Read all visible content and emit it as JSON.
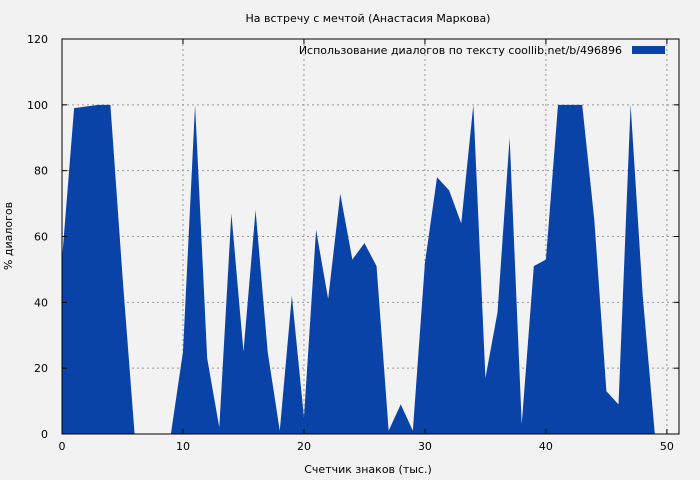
{
  "chart_data": {
    "type": "area",
    "title": "На встречу с мечтой (Анастасия Маркова)",
    "xlabel": "Счетчик знаков (тыс.)",
    "ylabel": "% диалогов",
    "xlim": [
      0,
      51
    ],
    "ylim": [
      0,
      120
    ],
    "x_ticks": [
      0,
      10,
      20,
      30,
      40,
      50
    ],
    "y_ticks": [
      0,
      20,
      40,
      60,
      80,
      100,
      120
    ],
    "grid": true,
    "legend_position": "top-right",
    "colors": {
      "series": "#0a43a8",
      "background": "#f2f2f2",
      "grid": "#999999"
    },
    "series": [
      {
        "name": "Использование диалогов по тексту  coollib.net/b/496896",
        "x": [
          0,
          1,
          2,
          3,
          4,
          5,
          6,
          7,
          8,
          9,
          10,
          11,
          12,
          13,
          14,
          15,
          16,
          17,
          18,
          19,
          20,
          21,
          22,
          23,
          24,
          25,
          26,
          27,
          28,
          29,
          30,
          31,
          32,
          33,
          34,
          35,
          36,
          37,
          38,
          39,
          40,
          41,
          42,
          43,
          44,
          45,
          46,
          47,
          48,
          49,
          50
        ],
        "values": [
          53,
          99,
          99.5,
          100,
          100,
          48,
          0,
          0,
          0,
          0,
          25,
          100,
          23,
          2,
          67,
          25,
          68,
          25,
          1,
          42,
          5,
          62,
          41,
          73,
          53,
          58,
          51,
          1,
          9,
          1,
          52,
          78,
          74,
          64,
          100,
          17,
          37,
          90,
          3,
          51,
          53,
          100,
          100,
          100,
          65,
          13,
          9,
          100,
          42,
          0,
          0
        ]
      }
    ]
  }
}
